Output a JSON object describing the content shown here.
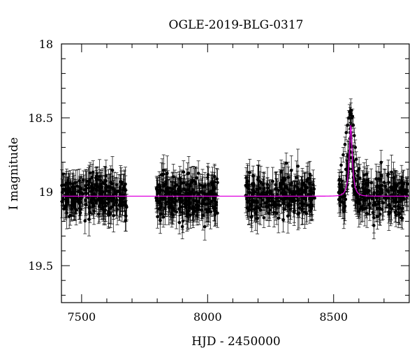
{
  "chart_data": {
    "type": "scatter",
    "title": "OGLE-2019-BLG-0317",
    "xlabel": "HJD - 2450000",
    "ylabel": "I magnitude",
    "xlim": [
      7420,
      8800
    ],
    "ylim": [
      19.75,
      18.0
    ],
    "y_inverted": true,
    "x_ticks": [
      7500,
      8000,
      8500
    ],
    "x_tick_labels": [
      "7500",
      "8000",
      "8500"
    ],
    "y_ticks": [
      18,
      18.5,
      19,
      19.5
    ],
    "y_tick_labels": [
      "18",
      "18.5",
      "19",
      "19.5"
    ],
    "grid": false,
    "legend": "none",
    "colors": {
      "points": "#000000",
      "model": "#e000e0",
      "frame": "#000000"
    },
    "series": [
      {
        "kind": "photometry",
        "marker": "filled-circle-with-error-bars",
        "seasons": [
          {
            "x_range": [
              7420,
              7680
            ],
            "mag_mean": 19.03,
            "mag_scatter": 0.13,
            "err_mean": 0.09
          },
          {
            "x_range": [
              7795,
              8040
            ],
            "mag_mean": 19.03,
            "mag_scatter": 0.13,
            "err_mean": 0.09
          },
          {
            "x_range": [
              8150,
              8425
            ],
            "mag_mean": 19.03,
            "mag_scatter": 0.13,
            "err_mean": 0.09
          },
          {
            "x_range": [
              8520,
              8795
            ],
            "mag_mean": 19.03,
            "mag_scatter": 0.13,
            "err_mean": 0.09
          }
        ],
        "event_points": [
          [
            8522,
            18.92
          ],
          [
            8530,
            18.82
          ],
          [
            8538,
            18.75
          ],
          [
            8545,
            18.68
          ],
          [
            8550,
            18.6
          ],
          [
            8555,
            18.55
          ],
          [
            8560,
            18.5
          ],
          [
            8563,
            18.46
          ],
          [
            8566,
            18.48
          ],
          [
            8569,
            18.45
          ],
          [
            8572,
            18.5
          ],
          [
            8575,
            18.49
          ],
          [
            8578,
            18.55
          ],
          [
            8582,
            18.62
          ],
          [
            8586,
            18.7
          ],
          [
            8590,
            18.78
          ],
          [
            8595,
            18.86
          ]
        ]
      },
      {
        "kind": "model",
        "description_free": true,
        "baseline_mag": 19.03,
        "peak_hjd": 8568,
        "peak_mag": 18.55,
        "t_E": 18
      }
    ]
  }
}
